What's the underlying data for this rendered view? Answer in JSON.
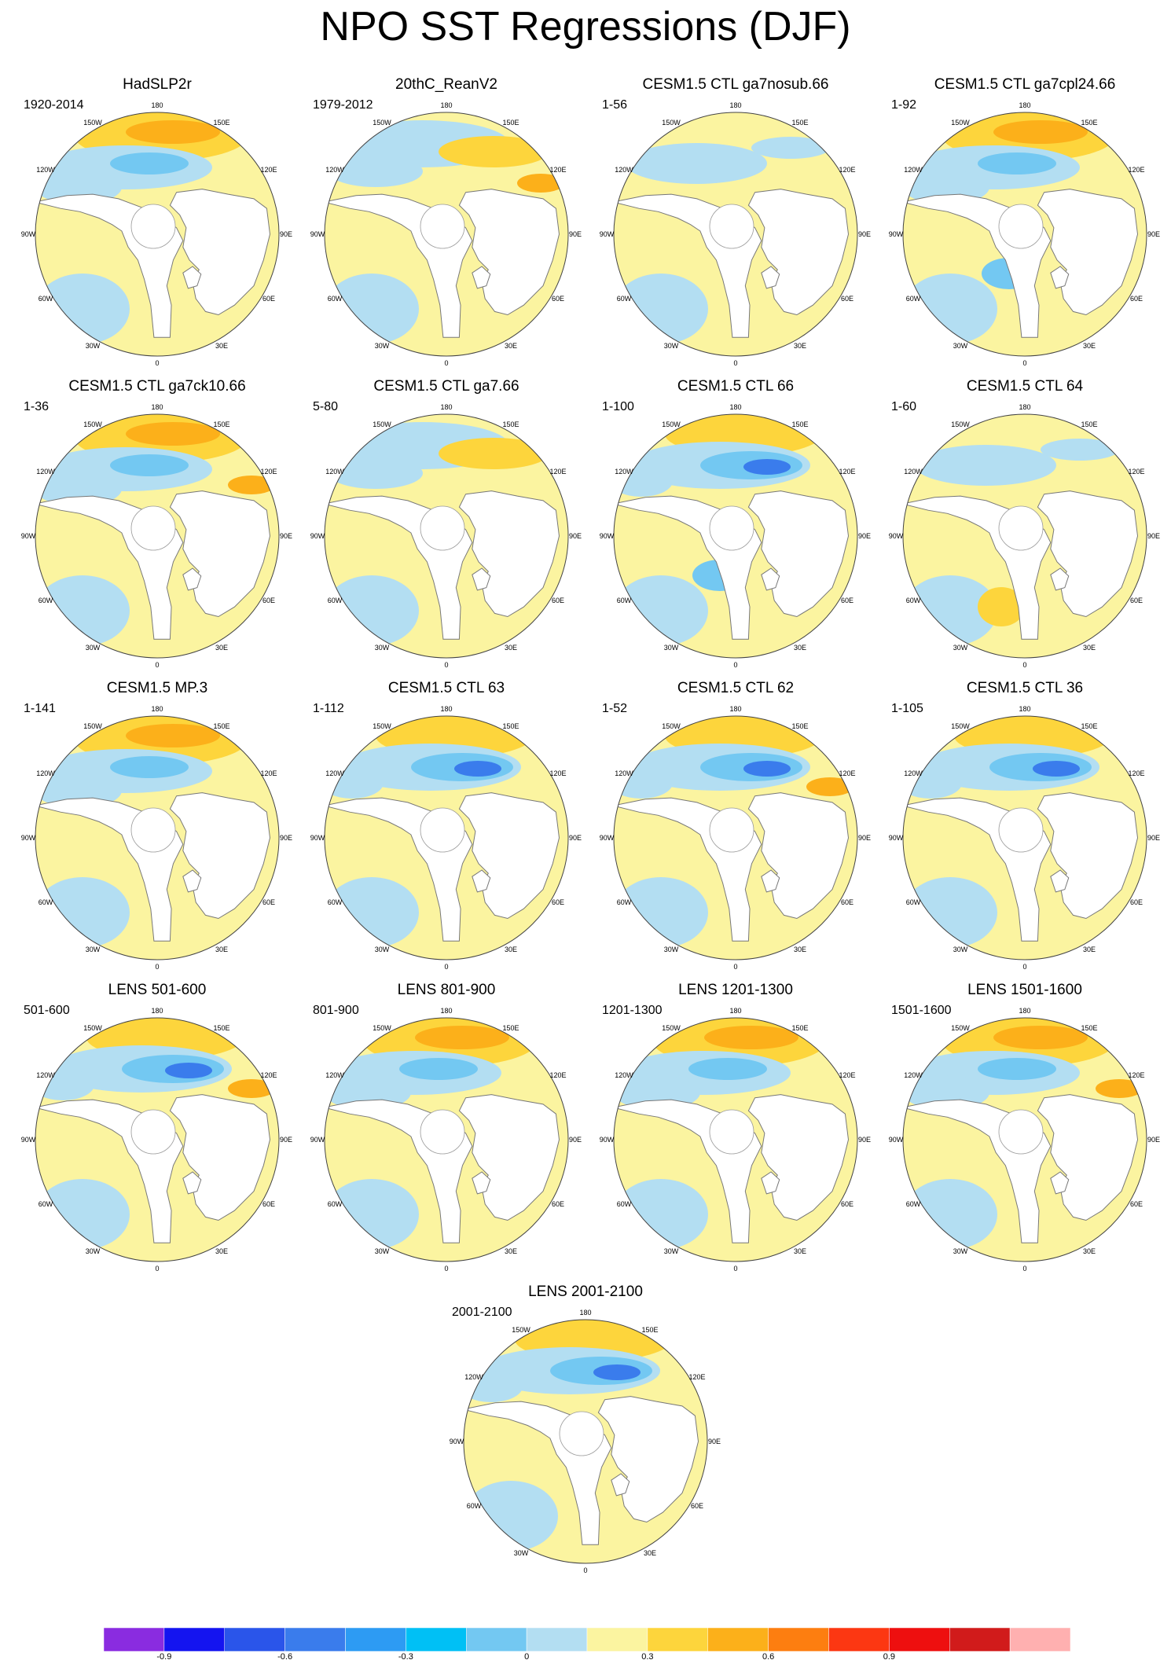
{
  "title": "NPO SST Regressions (DJF)",
  "chart_data": {
    "type": "polar-stereographic-map-panels",
    "title": "NPO SST Regressions (DJF)",
    "projection": "north-polar stereographic",
    "longitude_labels": [
      "180",
      "150E",
      "120E",
      "90E",
      "60E",
      "30E",
      "0",
      "30W",
      "60W",
      "90W",
      "120W",
      "150W"
    ],
    "colorbar": {
      "levels": [
        "-0.9",
        "-0.6",
        "-0.3",
        "0",
        "0.3",
        "0.6",
        "0.9"
      ],
      "colors": [
        "#8a2ce0",
        "#1414f0",
        "#2a55ea",
        "#3a7cec",
        "#2d9bf3",
        "#00c0f5",
        "#73c8f2",
        "#b3def2",
        "#fbf4a0",
        "#fdd53c",
        "#fcb01a",
        "#fd7e10",
        "#fc3712",
        "#ee0f0f",
        "#d11b1b",
        "#ffb0b0"
      ]
    },
    "panels": [
      {
        "title": "HadSLP2r",
        "years": "1920-2014",
        "pattern": "A",
        "extra": []
      },
      {
        "title": "20thC_ReanV2",
        "years": "1979-2012",
        "pattern": "B",
        "extra": [
          "orange-coast"
        ]
      },
      {
        "title": "CESM1.5 CTL ga7nosub.66",
        "years": "1-56",
        "pattern": "weak",
        "extra": []
      },
      {
        "title": "CESM1.5 CTL ga7cpl24.66",
        "years": "1-92",
        "pattern": "A",
        "extra": [
          "blue-atlantic"
        ]
      },
      {
        "title": "CESM1.5 CTL ga7ck10.66",
        "years": "1-36",
        "pattern": "A",
        "extra": [
          "orange-coast"
        ]
      },
      {
        "title": "CESM1.5 CTL ga7.66",
        "years": "5-80",
        "pattern": "B",
        "extra": []
      },
      {
        "title": "CESM1.5 CTL 66",
        "years": "1-100",
        "pattern": "C",
        "extra": [
          "blue-atlantic"
        ]
      },
      {
        "title": "CESM1.5 CTL 64",
        "years": "1-60",
        "pattern": "weak",
        "extra": [
          "orange-atlantic"
        ]
      },
      {
        "title": "CESM1.5 MP.3",
        "years": "1-141",
        "pattern": "A",
        "extra": []
      },
      {
        "title": "CESM1.5 CTL 63",
        "years": "1-112",
        "pattern": "C",
        "extra": []
      },
      {
        "title": "CESM1.5 CTL 62",
        "years": "1-52",
        "pattern": "C",
        "extra": [
          "orange-coast"
        ]
      },
      {
        "title": "CESM1.5 CTL 36",
        "years": "1-105",
        "pattern": "C",
        "extra": []
      },
      {
        "title": "LENS 501-600",
        "years": "501-600",
        "pattern": "C",
        "extra": [
          "orange-coast"
        ]
      },
      {
        "title": "LENS 801-900",
        "years": "801-900",
        "pattern": "A",
        "extra": []
      },
      {
        "title": "LENS 1201-1300",
        "years": "1201-1300",
        "pattern": "A",
        "extra": []
      },
      {
        "title": "LENS 1501-1600",
        "years": "1501-1600",
        "pattern": "A",
        "extra": [
          "orange-coast"
        ]
      },
      {
        "title": "LENS 2001-2100",
        "years": "2001-2100",
        "pattern": "C",
        "extra": []
      }
    ]
  }
}
